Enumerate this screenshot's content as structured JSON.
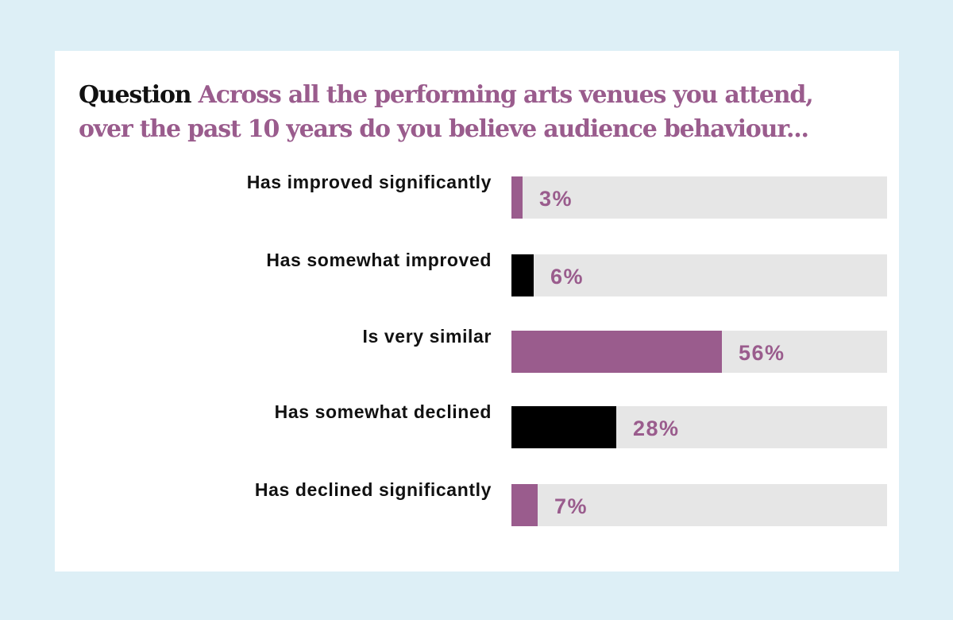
{
  "colors": {
    "background": "#ddeff6",
    "card": "#ffffff",
    "accent": "#9a5c8d",
    "dark": "#000000",
    "track": "#e6e6e6"
  },
  "chart_data": {
    "type": "bar",
    "orientation": "horizontal",
    "title_prefix": "Question",
    "title": "Across all the performing arts venues you attend, over the past 10 years do you believe audience behaviour...",
    "categories": [
      "Has improved significantly",
      "Has somewhat improved",
      "Is very similar",
      "Has somewhat declined",
      "Has declined significantly"
    ],
    "values": [
      3,
      6,
      56,
      28,
      7
    ],
    "value_labels": [
      "3%",
      "6%",
      "56%",
      "28%",
      "7%"
    ],
    "bar_colors": [
      "#9a5c8d",
      "#000000",
      "#9a5c8d",
      "#000000",
      "#9a5c8d"
    ],
    "xlim": [
      0,
      100
    ],
    "xlabel": "",
    "ylabel": "",
    "grid": false,
    "legend": "none"
  }
}
